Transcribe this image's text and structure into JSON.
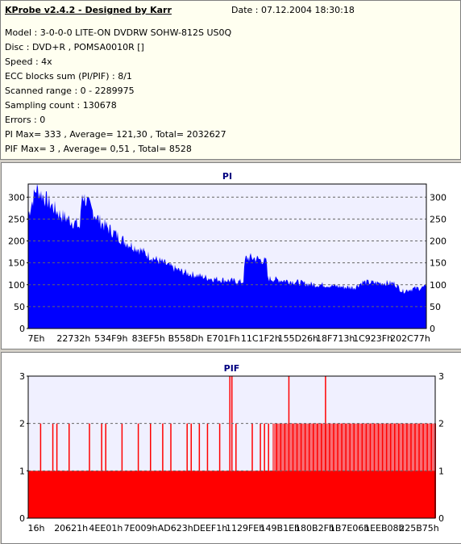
{
  "info": {
    "title": "KProbe v2.4.2 - Designed by Karr",
    "date": "Date : 07.12.2004 18:30:18",
    "lines": [
      "Model : 3-0-0-0 LITE-ON DVDRW SOHW-812S  US0Q",
      "Disc : DVD+R , POMSA0010R []",
      "Speed : 4x",
      "ECC blocks sum (PI/PIF) : 8/1",
      "Scanned range : 0 - 2289975",
      "Sampling count : 130678",
      "Errors : 0",
      "PI Max= 333 , Average= 121,30 , Total= 2032627",
      "PIF Max= 3 , Average= 0,51 , Total= 8528"
    ]
  },
  "chart_data": [
    {
      "type": "area",
      "title": "PI",
      "color": "#0000ff",
      "ylim": [
        0,
        330
      ],
      "yticks": [
        "0",
        "50",
        "100",
        "150",
        "200",
        "250",
        "300"
      ],
      "gridlines": [
        50,
        100,
        150,
        200,
        250,
        300
      ],
      "xticks": [
        "7Eh",
        "22732h",
        "534F9h",
        "83EF5h",
        "B558Dh",
        "E701Fh",
        "11C1F2h",
        "155D26h",
        "18F713h",
        "1C923Fh",
        "202C77h"
      ],
      "x": [
        0,
        0.02,
        0.04,
        0.06,
        0.08,
        0.1,
        0.12,
        0.13,
        0.135,
        0.14,
        0.16,
        0.18,
        0.2,
        0.22,
        0.24,
        0.26,
        0.28,
        0.3,
        0.32,
        0.34,
        0.36,
        0.38,
        0.4,
        0.42,
        0.44,
        0.46,
        0.48,
        0.5,
        0.52,
        0.54,
        0.545,
        0.56,
        0.58,
        0.6,
        0.6,
        0.62,
        0.64,
        0.66,
        0.68,
        0.7,
        0.72,
        0.74,
        0.76,
        0.78,
        0.8,
        0.82,
        0.84,
        0.86,
        0.88,
        0.9,
        0.92,
        0.94,
        0.96,
        0.98,
        1.0
      ],
      "values": [
        260,
        320,
        300,
        280,
        260,
        250,
        240,
        230,
        310,
        300,
        270,
        245,
        230,
        215,
        200,
        190,
        180,
        168,
        158,
        150,
        140,
        132,
        126,
        122,
        118,
        114,
        112,
        110,
        108,
        106,
        160,
        162,
        158,
        152,
        115,
        112,
        110,
        108,
        105,
        102,
        100,
        100,
        98,
        96,
        94,
        94,
        106,
        105,
        104,
        104,
        103,
        85,
        90,
        92,
        95
      ]
    },
    {
      "type": "bar",
      "title": "PIF",
      "color": "#ff0000",
      "ylim": [
        0,
        3
      ],
      "yticks": [
        "0",
        "1",
        "2",
        "3"
      ],
      "gridlines": [
        1,
        2
      ],
      "xticks": [
        "16h",
        "20621h",
        "4EE01h",
        "7E009h",
        "AD623h",
        "DEEF1h",
        "1129FEh",
        "149B1Eh",
        "180B2Fh",
        "1B7E06h",
        "1EEB08h",
        "225B75h"
      ],
      "baseline": 1,
      "spikes2": [
        0.03,
        0.06,
        0.07,
        0.1,
        0.15,
        0.18,
        0.19,
        0.23,
        0.27,
        0.3,
        0.33,
        0.35,
        0.39,
        0.4,
        0.42,
        0.44,
        0.47,
        0.5,
        0.51,
        0.55,
        0.57,
        0.58,
        0.59,
        0.61,
        0.62,
        0.63,
        0.65,
        0.66,
        0.67,
        0.68,
        0.69,
        0.7,
        0.71,
        0.72,
        0.73,
        0.74,
        0.75,
        0.76,
        0.77,
        0.78,
        0.79,
        0.8,
        0.81,
        0.82,
        0.83,
        0.84,
        0.85,
        0.86,
        0.87,
        0.88,
        0.89,
        0.9,
        0.91,
        0.92,
        0.93,
        0.94,
        0.95,
        0.96,
        0.97,
        0.98,
        0.99,
        1.0
      ],
      "spikes3": [
        0.495,
        0.5,
        0.64,
        0.73
      ]
    }
  ]
}
